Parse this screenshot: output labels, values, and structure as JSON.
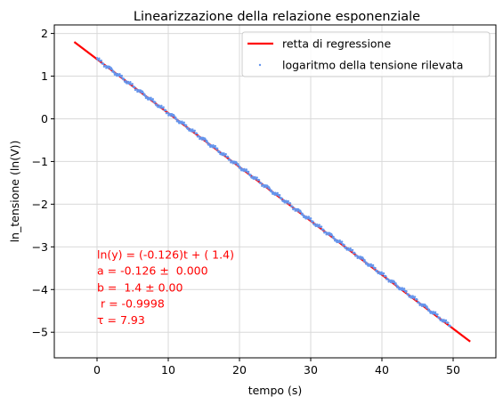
{
  "chart_data": {
    "type": "scatter",
    "title": "Linearizzazione della relazione esponenziale",
    "xlabel": "tempo (s)",
    "ylabel": "ln_tensione (ln(V))",
    "xlim": [
      -6,
      56
    ],
    "ylim": [
      -5.6,
      2.2
    ],
    "xticks": [
      0,
      10,
      20,
      30,
      40,
      50
    ],
    "yticks": [
      -5,
      -4,
      -3,
      -2,
      -1,
      0,
      1,
      2
    ],
    "xtick_labels": [
      "0",
      "10",
      "20",
      "30",
      "40",
      "50"
    ],
    "ytick_labels": [
      "−5",
      "−4",
      "−3",
      "−2",
      "−1",
      "0",
      "1",
      "2"
    ],
    "grid": true,
    "legend_position": "top-right",
    "series": [
      {
        "name": "retta di regressione",
        "kind": "line",
        "color": "#ff0000",
        "x": [
          -3.2,
          52.4
        ],
        "y": [
          1.8,
          -5.22
        ]
      },
      {
        "name": "logaritmo della tensione rilevata",
        "kind": "scatter",
        "color": "#6495ed",
        "x_start": 0,
        "x_end": 49.6,
        "n_points": 500,
        "slope": -0.126,
        "intercept": 1.4,
        "x_sample": [
          0,
          5,
          10,
          15,
          20,
          25,
          30,
          35,
          40,
          45,
          49.6
        ],
        "y_sample": [
          1.4,
          0.77,
          0.14,
          -0.49,
          -1.12,
          -1.75,
          -2.38,
          -3.01,
          -3.64,
          -4.27,
          -4.85
        ]
      }
    ],
    "annotations": [
      {
        "text": "ln(y) = (-0.126)t + ( 1.4)",
        "x": 0,
        "y": -3.18,
        "color": "#ff0000"
      },
      {
        "text": "a = -0.126 ±  0.000",
        "x": 0,
        "y": -3.56,
        "color": "#ff0000"
      },
      {
        "text": "b =  1.4 ± 0.00",
        "x": 0,
        "y": -3.95,
        "color": "#ff0000"
      },
      {
        "text": " r = -0.9998",
        "x": 0,
        "y": -4.33,
        "color": "#ff0000"
      },
      {
        "text": "τ = 7.93",
        "x": 0,
        "y": -4.71,
        "color": "#ff0000"
      }
    ]
  }
}
